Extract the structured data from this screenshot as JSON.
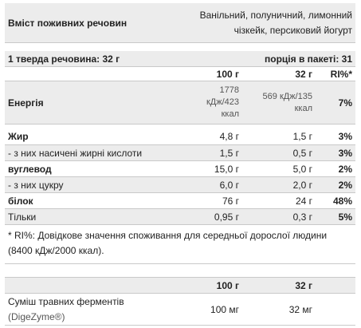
{
  "header": {
    "title": "Вміст поживних речовин",
    "flavors": "Ванільний, полуничний, лимонний чізкейк, персиковий йогурт"
  },
  "serving": {
    "solids_label": "1 тверда речовина: 32 г",
    "per_pack_label": "порція в пакеті: 31"
  },
  "columns": {
    "per100": "100 г",
    "per32": "32 г",
    "ri": "RI%*"
  },
  "nutrients": [
    {
      "name": "Енергія",
      "per100": "1778 кДж/423 ккал",
      "per32": "569 кДж/135 ккал",
      "ri": "7%"
    },
    {
      "name": "Жир",
      "per100": "4,8 г",
      "per32": "1,5 г",
      "ri": "3%"
    },
    {
      "name": "- з них насичені жирні кислоти",
      "per100": "1,5 г",
      "per32": "0,5 г",
      "ri": "3%"
    },
    {
      "name": "вуглевод",
      "per100": "15,0 г",
      "per32": "5,0 г",
      "ri": "2%"
    },
    {
      "name": "- з них цукру",
      "per100": "6,0 г",
      "per32": "2,0 г",
      "ri": "2%"
    },
    {
      "name": "білок",
      "per100": "76 г",
      "per32": "24 г",
      "ri": "48%"
    },
    {
      "name": "Тільки",
      "per100": "0,95 г",
      "per32": "0,3 г",
      "ri": "5%"
    }
  ],
  "footnote": "* RI%: Довідкове значення споживання для середньої дорослої людини (8400 кДж/2000 ккал).",
  "enzymes": {
    "per100": "100 г",
    "per32": "32 г",
    "name": "Суміш травних ферментів",
    "brand": "(DigeZyme®)",
    "val100": "100 мг",
    "val32": "32 мг"
  }
}
